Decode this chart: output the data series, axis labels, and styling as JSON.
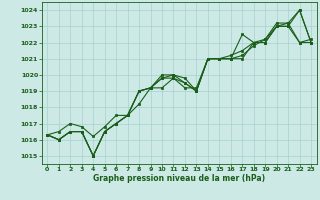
{
  "line1": [
    1016.3,
    1016.0,
    1016.5,
    1016.5,
    1015.0,
    1016.5,
    1017.0,
    1017.5,
    1019.0,
    1019.2,
    1019.8,
    1019.8,
    1019.5,
    1019.0,
    1021.0,
    1021.0,
    1021.0,
    1021.0,
    1022.0,
    1022.0,
    1023.0,
    1023.0,
    1022.0,
    1022.0
  ],
  "line2": [
    1016.3,
    1016.0,
    1016.5,
    1016.5,
    1015.0,
    1016.5,
    1017.0,
    1017.5,
    1018.2,
    1019.2,
    1020.0,
    1020.0,
    1019.8,
    1019.0,
    1021.0,
    1021.0,
    1021.2,
    1021.5,
    1022.0,
    1022.0,
    1023.0,
    1023.0,
    1024.0,
    1022.0
  ],
  "line3": [
    1016.3,
    1016.0,
    1016.5,
    1016.5,
    1015.0,
    1016.5,
    1017.0,
    1017.5,
    1019.0,
    1019.2,
    1019.8,
    1020.0,
    1019.5,
    1019.0,
    1021.0,
    1021.0,
    1021.0,
    1022.5,
    1022.0,
    1022.2,
    1023.2,
    1023.2,
    1024.0,
    1022.0
  ],
  "line4": [
    1016.3,
    1016.5,
    1017.0,
    1016.8,
    1016.2,
    1016.8,
    1017.5,
    1017.5,
    1019.0,
    1019.2,
    1019.2,
    1019.8,
    1019.2,
    1019.2,
    1021.0,
    1021.0,
    1021.0,
    1021.2,
    1021.8,
    1022.2,
    1023.0,
    1023.2,
    1022.0,
    1022.2
  ],
  "bg_color": "#cce9e6",
  "line_color": "#1a5e1a",
  "grid_color": "#9fccc8",
  "xlabel": "Graphe pression niveau de la mer (hPa)",
  "ylim_min": 1014.5,
  "ylim_max": 1024.5,
  "yticks": [
    1015,
    1016,
    1017,
    1018,
    1019,
    1020,
    1021,
    1022,
    1023,
    1024
  ],
  "xticks": [
    0,
    1,
    2,
    3,
    4,
    5,
    6,
    7,
    8,
    9,
    10,
    11,
    12,
    13,
    14,
    15,
    16,
    17,
    18,
    19,
    20,
    21,
    22,
    23
  ],
  "marker": "s",
  "markersize": 1.8,
  "linewidth": 0.8
}
